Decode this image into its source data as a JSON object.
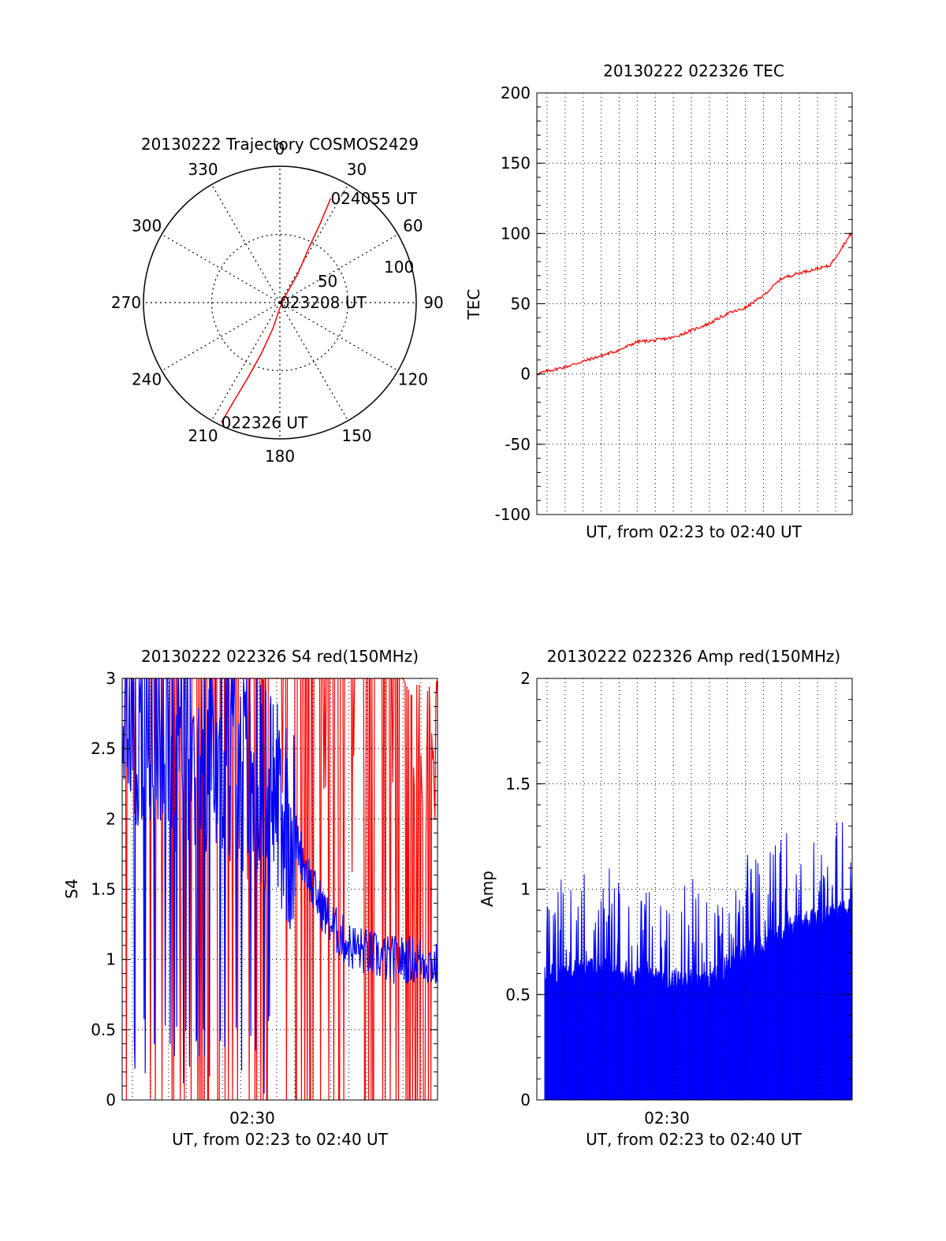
{
  "colors": {
    "red": "#ff0000",
    "blue": "#0000ff",
    "axis": "#000000",
    "grid": "#000000",
    "background": "#ffffff"
  },
  "chart_data": [
    {
      "id": "trajectory",
      "type": "polar",
      "title": "20130222 Trajectory COSMOS2429",
      "azimuth_labels": [
        "0",
        "30",
        "60",
        "90",
        "120",
        "150",
        "180",
        "210",
        "240",
        "270",
        "300",
        "330"
      ],
      "azimuth_degrees": [
        0,
        30,
        60,
        90,
        120,
        150,
        180,
        210,
        240,
        270,
        300,
        330
      ],
      "radial_labels": [
        "50",
        "100"
      ],
      "radial_values": [
        50,
        100
      ],
      "rlim": [
        0,
        100
      ],
      "grid": true,
      "series": [
        {
          "color": "#ff0000",
          "points": [
            {
              "az": 206,
              "r": 98
            },
            {
              "az": 205,
              "r": 80
            },
            {
              "az": 203,
              "r": 60
            },
            {
              "az": 200,
              "r": 40
            },
            {
              "az": 195,
              "r": 20
            },
            {
              "az": 180,
              "r": 4
            },
            {
              "az": 40,
              "r": 6
            },
            {
              "az": 32,
              "r": 25
            },
            {
              "az": 28,
              "r": 45
            },
            {
              "az": 27,
              "r": 65
            },
            {
              "az": 26,
              "r": 85
            }
          ]
        }
      ],
      "annotations": [
        {
          "text": "024055 UT",
          "az": 26,
          "r": 85
        },
        {
          "text": "023208 UT",
          "az": 0,
          "r": 0
        },
        {
          "text": "022326 UT",
          "az": 206,
          "r": 98
        }
      ]
    },
    {
      "id": "tec",
      "type": "line",
      "title": "20130222 022326 TEC",
      "xlabel": "UT, from 02:23 to 02:40 UT",
      "ylabel": "TEC",
      "xlim": [
        "02:23:26",
        "02:40:55"
      ],
      "ylim": [
        -100,
        200
      ],
      "yticks": [
        "200",
        "150",
        "100",
        "50",
        "0",
        "-50",
        "-100"
      ],
      "ytick_values": [
        200,
        150,
        100,
        50,
        0,
        -50,
        -100
      ],
      "grid": true,
      "series": [
        {
          "color": "#ff0000",
          "x": [
            "02:23:26",
            "02:24:00",
            "02:25:00",
            "02:26:00",
            "02:27:00",
            "02:28:00",
            "02:29:00",
            "02:30:00",
            "02:31:00",
            "02:32:00",
            "02:33:00",
            "02:34:00",
            "02:35:00",
            "02:36:00",
            "02:37:00",
            "02:38:00",
            "02:39:00",
            "02:39:40",
            "02:40:55"
          ],
          "y": [
            0,
            2,
            5,
            9,
            13,
            17,
            23,
            24,
            26,
            31,
            36,
            43,
            47,
            56,
            68,
            72,
            75,
            77,
            101
          ]
        }
      ]
    },
    {
      "id": "s4",
      "type": "line",
      "title": "20130222 022326 S4 red(150MHz)",
      "xlabel": "UT, from 02:23 to 02:40 UT",
      "ylabel": "S4",
      "xticks": [
        "02:30"
      ],
      "xlim": [
        "02:23:26",
        "02:40:55"
      ],
      "ylim": [
        0,
        3
      ],
      "yticks": [
        "3",
        "2.5",
        "2",
        "1.5",
        "1",
        "0.5",
        "0"
      ],
      "ytick_values": [
        3,
        2.5,
        2,
        1.5,
        1,
        0.5,
        0
      ],
      "grid": true,
      "series": [
        {
          "color": "#ff0000",
          "description_values": "red S4 mostly saturated at 3 with frequent drops to 0",
          "x": [
            "02:23:26",
            "02:25:00",
            "02:27:00",
            "02:29:00",
            "02:31:00",
            "02:33:00",
            "02:35:00",
            "02:37:00",
            "02:39:00",
            "02:40:55"
          ],
          "y": [
            3,
            3,
            3,
            3,
            3,
            3,
            3,
            3,
            3,
            2.5
          ]
        },
        {
          "color": "#0000ff",
          "x": [
            "02:23:26",
            "02:25:00",
            "02:27:00",
            "02:29:00",
            "02:30:30",
            "02:32:00",
            "02:33:00",
            "02:34:00",
            "02:35:00",
            "02:36:00",
            "02:37:00",
            "02:38:00",
            "02:39:00",
            "02:40:00",
            "02:40:55"
          ],
          "y": [
            2.8,
            2.7,
            2.6,
            2.5,
            2.3,
            2.2,
            1.9,
            1.5,
            1.25,
            1.1,
            1.05,
            1.0,
            1.0,
            1.0,
            0.95
          ]
        }
      ]
    },
    {
      "id": "amp",
      "type": "bar",
      "title": "20130222 022326 Amp red(150MHz)",
      "xlabel": "UT, from 02:23 to 02:40 UT",
      "ylabel": "Amp",
      "xticks": [
        "02:30"
      ],
      "xlim": [
        "02:23:26",
        "02:40:55"
      ],
      "ylim": [
        0,
        2
      ],
      "yticks": [
        "2",
        "1.5",
        "1",
        "0.5",
        "0"
      ],
      "ytick_values": [
        2,
        1.5,
        1,
        0.5,
        0
      ],
      "grid": true,
      "series": [
        {
          "color": "#0000ff",
          "x": [
            "02:23:26",
            "02:25:00",
            "02:27:00",
            "02:29:00",
            "02:31:00",
            "02:33:00",
            "02:34:00",
            "02:35:00",
            "02:36:00",
            "02:37:00",
            "02:38:00",
            "02:39:00",
            "02:40:00",
            "02:40:55"
          ],
          "y": [
            0.5,
            0.55,
            0.55,
            0.5,
            0.5,
            0.5,
            0.55,
            0.62,
            0.68,
            0.72,
            0.78,
            0.8,
            0.82,
            0.85
          ]
        }
      ]
    }
  ]
}
